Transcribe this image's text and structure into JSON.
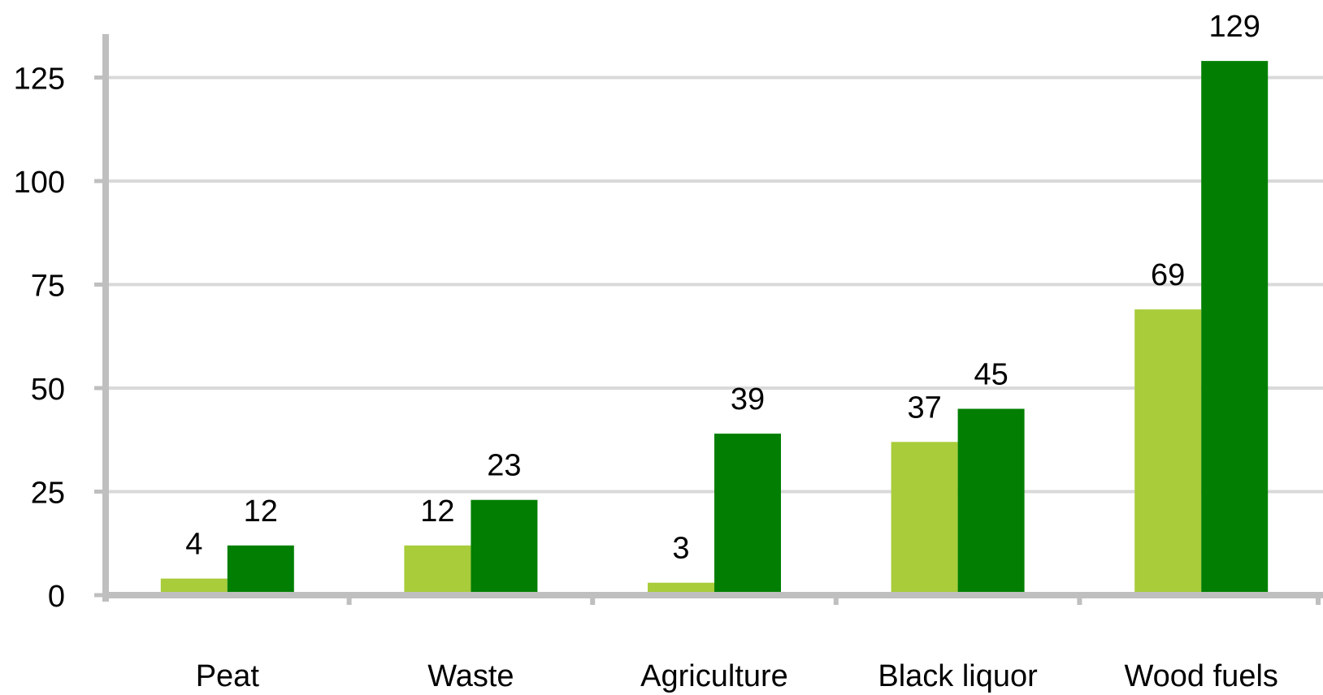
{
  "chart_data": {
    "type": "bar",
    "title": "",
    "xlabel": "",
    "ylabel": "",
    "categories": [
      "Peat",
      "Waste",
      "Agriculture",
      "Black liquor",
      "Wood fuels"
    ],
    "series": [
      {
        "values": [
          4,
          12,
          3,
          37,
          69
        ],
        "color": "#a8cc3a"
      },
      {
        "values": [
          12,
          23,
          39,
          45,
          129
        ],
        "color": "#027f02"
      }
    ],
    "ylim": [
      0,
      129
    ],
    "yticks": [
      0,
      25,
      50,
      75,
      100,
      125
    ],
    "grid": true,
    "legend": "none",
    "colors": {
      "grid": "#d9d9d9",
      "axis": "#bfbfbf"
    }
  }
}
